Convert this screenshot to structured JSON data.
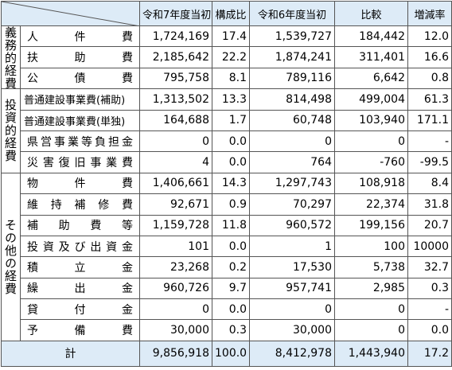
{
  "header": {
    "columns": [
      "令和7年度当初",
      "構成比",
      "令和6年度当初",
      "比較",
      "増減率"
    ]
  },
  "groups": [
    {
      "label": "義務的経費",
      "rows": [
        {
          "name": "人件費",
          "cells": [
            "1,724,169",
            "17.4",
            "1,539,727",
            "184,442",
            "12.0"
          ]
        },
        {
          "name": "扶助費",
          "cells": [
            "2,185,642",
            "22.2",
            "1,874,241",
            "311,401",
            "16.6"
          ]
        },
        {
          "name": "公債費",
          "cells": [
            "795,758",
            "8.1",
            "789,116",
            "6,642",
            "0.8"
          ]
        }
      ]
    },
    {
      "label": "投資的経費",
      "rows": [
        {
          "name": "普通建設事業費(補助)",
          "cells": [
            "1,313,502",
            "13.3",
            "814,498",
            "499,004",
            "61.3"
          ]
        },
        {
          "name": "普通建設事業費(単独)",
          "cells": [
            "164,688",
            "1.7",
            "60,748",
            "103,940",
            "171.1"
          ]
        },
        {
          "name": "県営事業等負担金",
          "cells": [
            "0",
            "0.0",
            "0",
            "0",
            "-"
          ]
        },
        {
          "name": "災害復旧事業費",
          "cells": [
            "4",
            "0.0",
            "764",
            "-760",
            "-99.5"
          ]
        }
      ]
    },
    {
      "label": "その他の経費",
      "rows": [
        {
          "name": "物件費",
          "cells": [
            "1,406,661",
            "14.3",
            "1,297,743",
            "108,918",
            "8.4"
          ]
        },
        {
          "name": "維持補修費",
          "cells": [
            "92,671",
            "0.9",
            "70,297",
            "22,374",
            "31.8"
          ]
        },
        {
          "name": "補助費等",
          "cells": [
            "1,159,728",
            "11.8",
            "960,572",
            "199,156",
            "20.7"
          ]
        },
        {
          "name": "投資及び出資金",
          "cells": [
            "101",
            "0.0",
            "1",
            "100",
            "10000"
          ]
        },
        {
          "name": "積立金",
          "cells": [
            "23,268",
            "0.2",
            "17,530",
            "5,738",
            "32.7"
          ]
        },
        {
          "name": "繰出金",
          "cells": [
            "960,726",
            "9.7",
            "957,741",
            "2,985",
            "0.3"
          ]
        },
        {
          "name": "貸付金",
          "cells": [
            "0",
            "0.0",
            "0",
            "0",
            "-"
          ]
        },
        {
          "name": "予備費",
          "cells": [
            "30,000",
            "0.3",
            "30,000",
            "0",
            "0.0"
          ]
        }
      ]
    }
  ],
  "total": {
    "label": "計",
    "cells": [
      "9,856,918",
      "100.0",
      "8,412,978",
      "1,443,940",
      "17.2"
    ]
  }
}
